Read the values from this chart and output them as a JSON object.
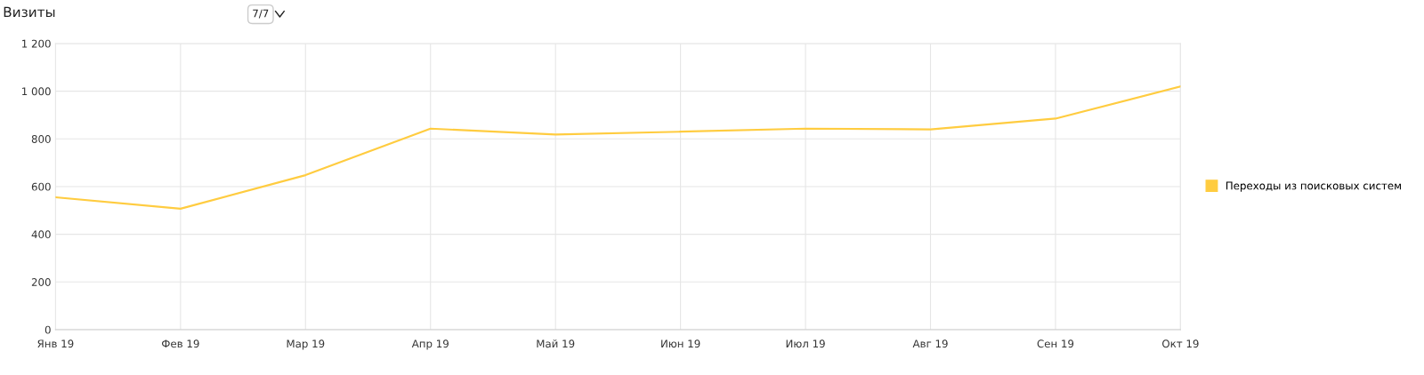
{
  "chart_data": {
    "type": "line",
    "title": "Визиты",
    "categories": [
      "Янв 19",
      "Фев 19",
      "Мар 19",
      "Апр 19",
      "Май 19",
      "Июн 19",
      "Июл 19",
      "Авг 19",
      "Сен 19",
      "Окт 19"
    ],
    "series": [
      {
        "name": "Переходы из поисковых систем",
        "color": "#ffcc40",
        "values": [
          555,
          507,
          648,
          843,
          818,
          830,
          843,
          840,
          885,
          1020
        ]
      }
    ],
    "ylim": [
      0,
      1200
    ],
    "yticks": [
      {
        "value": 0,
        "label": "0"
      },
      {
        "value": 200,
        "label": "200"
      },
      {
        "value": 400,
        "label": "400"
      },
      {
        "value": 600,
        "label": "600"
      },
      {
        "value": 800,
        "label": "800"
      },
      {
        "value": 1000,
        "label": "1 000"
      },
      {
        "value": 1200,
        "label": "1 200"
      }
    ],
    "grid": true,
    "legend": "right",
    "marker": "none",
    "line_style": "solid",
    "annotations": [
      "7/7"
    ]
  }
}
